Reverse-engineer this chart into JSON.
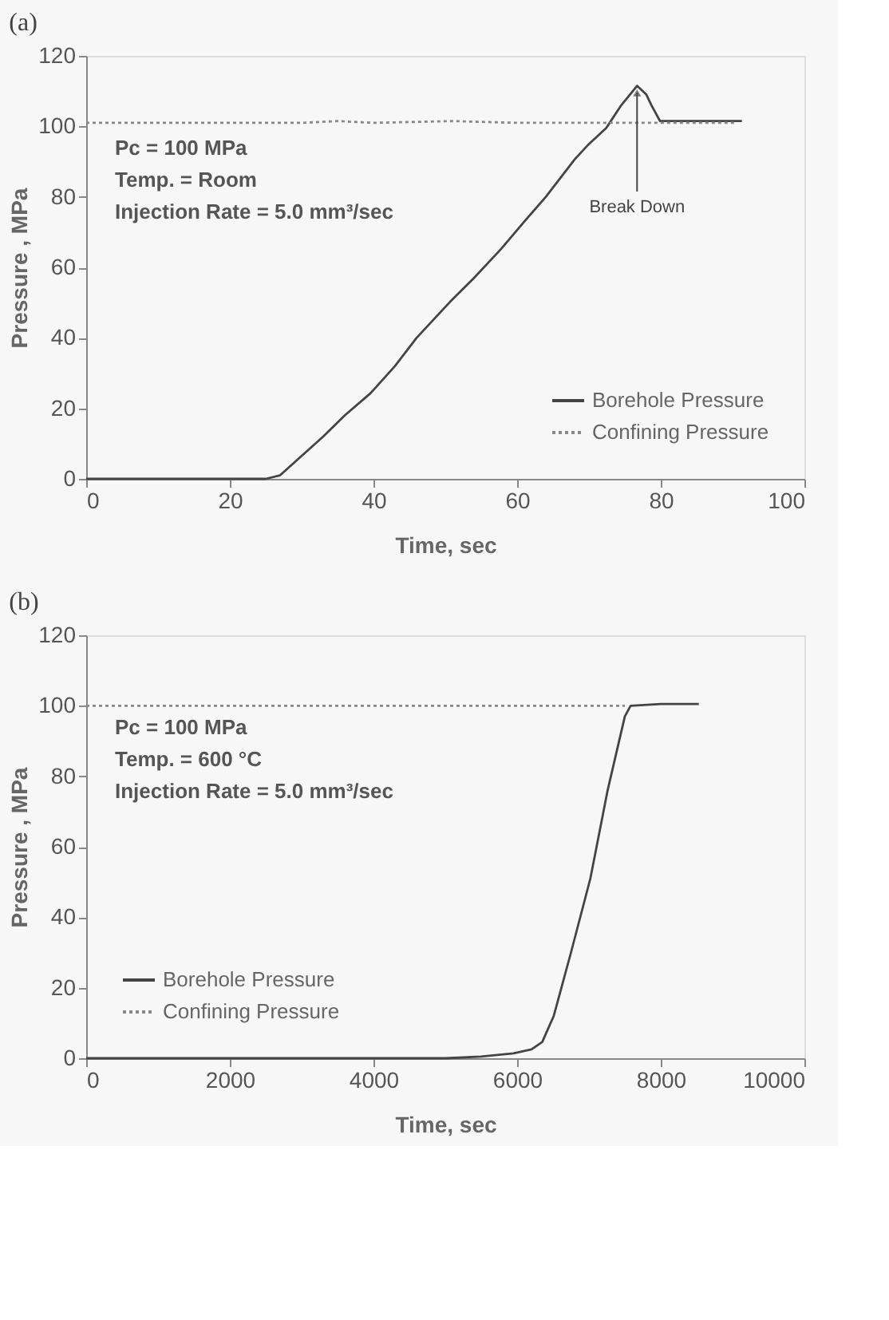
{
  "chart_data": [
    {
      "type": "line",
      "title": "(a)",
      "xlabel": "Time, sec",
      "ylabel": "Pressure , MPa",
      "xlim": [
        0,
        100
      ],
      "ylim": [
        0,
        120
      ],
      "xticks": [
        0,
        20,
        40,
        60,
        80,
        100
      ],
      "yticks": [
        0,
        20,
        40,
        60,
        80,
        100,
        120
      ],
      "legend": "bottom right",
      "annotations": [
        "Pc = 100 MPa",
        "Temp. = Room",
        "Injection Rate = 5.0 mm³/sec",
        {
          "text": "Break Down",
          "x": 76.7,
          "y": 111.5
        }
      ],
      "series": [
        {
          "name": "Borehole Pressure",
          "color": "#444444",
          "line_style": "solid",
          "x": [
            0,
            17,
            19,
            22,
            25,
            27,
            30,
            33,
            36,
            39.6,
            43,
            46,
            50.7,
            54,
            57.8,
            61,
            64,
            68,
            70,
            72.4,
            74.5,
            76.7,
            78,
            78.7,
            79.9,
            85,
            91.3
          ],
          "values": [
            0,
            0,
            0,
            0,
            0,
            1,
            6.5,
            12,
            18,
            24.3,
            32,
            40,
            50.3,
            57,
            65.3,
            73,
            80,
            90.6,
            95,
            99.5,
            106,
            111.5,
            109,
            106,
            101.5,
            101.5,
            101.5
          ]
        },
        {
          "name": "Confining Pressure",
          "color": "#888888",
          "line_style": "dotted",
          "x": [
            0,
            10,
            20,
            30,
            35,
            40,
            51,
            60,
            70,
            80,
            90.5
          ],
          "values": [
            101,
            101,
            101,
            101,
            101.5,
            101,
            101.5,
            101,
            101,
            101,
            101
          ]
        }
      ]
    },
    {
      "type": "line",
      "title": "(b)",
      "xlabel": "Time, sec",
      "ylabel": "Pressure , MPa",
      "xlim": [
        0,
        10000
      ],
      "ylim": [
        0,
        120
      ],
      "xticks": [
        0,
        2000,
        4000,
        6000,
        8000,
        10000
      ],
      "yticks": [
        0,
        20,
        40,
        60,
        80,
        100,
        120
      ],
      "legend": "bottom left",
      "annotations": [
        "Pc = 100 MPa",
        "Temp. = 600 °C",
        "Injection Rate = 5.0 mm³/sec"
      ],
      "series": [
        {
          "name": "Borehole Pressure",
          "color": "#444444",
          "line_style": "solid",
          "x": [
            0,
            2000,
            4000,
            5000,
            5500,
            5950,
            6200,
            6350,
            6510,
            6750,
            7020,
            7260,
            7500,
            7580,
            8000,
            8530
          ],
          "values": [
            0,
            0,
            0,
            0,
            0.5,
            1.4,
            2.5,
            4.6,
            12,
            30,
            51,
            76,
            97,
            100,
            100.5,
            100.5
          ]
        },
        {
          "name": "Confining Pressure",
          "color": "#888888",
          "line_style": "dotted",
          "x": [
            0,
            2000,
            4000,
            6000,
            7500
          ],
          "values": [
            100,
            100,
            100,
            100,
            100
          ]
        }
      ]
    }
  ]
}
